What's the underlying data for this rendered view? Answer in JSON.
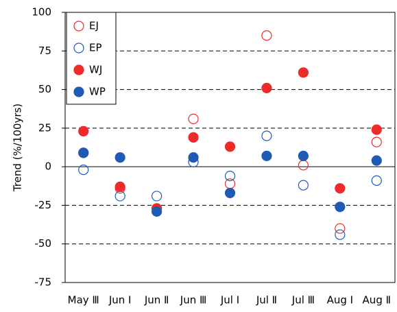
{
  "chart_data": {
    "type": "scatter",
    "y_label": "Trend (%/100yrs)",
    "categories": [
      "May Ⅲ",
      "Jun Ⅰ",
      "Jun Ⅱ",
      "Jun Ⅲ",
      "Jul Ⅰ",
      "Jul Ⅱ",
      "Jul Ⅲ",
      "Aug Ⅰ",
      "Aug Ⅱ"
    ],
    "series": [
      {
        "name": "EJ",
        "color": "#ee2a2a",
        "marker": "open",
        "values": [
          9,
          -14,
          -27,
          31,
          -11,
          85,
          1,
          -40,
          16
        ]
      },
      {
        "name": "EP",
        "color": "#1f5bb5",
        "marker": "open",
        "values": [
          -2,
          -19,
          -19,
          3,
          -6,
          20,
          -12,
          -44,
          -9
        ]
      },
      {
        "name": "WJ",
        "color": "#ee2a2a",
        "marker": "filled",
        "values": [
          23,
          -13,
          -27,
          19,
          13,
          51,
          61,
          -14,
          24
        ]
      },
      {
        "name": "WP",
        "color": "#1f5bb5",
        "marker": "filled",
        "values": [
          9,
          6,
          -29,
          6,
          -17,
          7,
          7,
          -26,
          4
        ]
      }
    ],
    "ylim": [
      -75,
      100
    ],
    "yticks": [
      -75,
      -50,
      -25,
      0,
      25,
      50,
      75,
      100
    ],
    "grid": true,
    "legend": "top-left"
  }
}
